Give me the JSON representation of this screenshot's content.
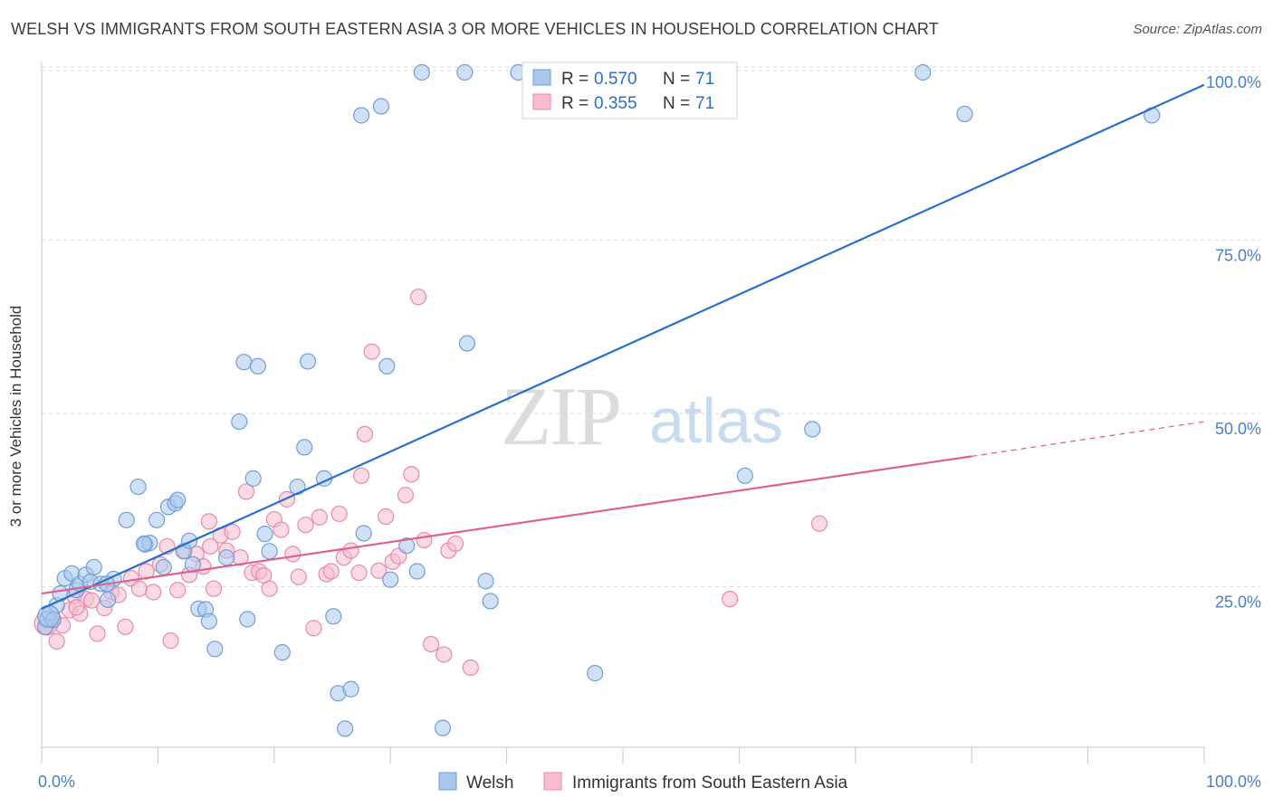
{
  "title": "WELSH VS IMMIGRANTS FROM SOUTH EASTERN ASIA 3 OR MORE VEHICLES IN HOUSEHOLD CORRELATION CHART",
  "source": "Source: ZipAtlas.com",
  "watermark": {
    "zip": "ZIP",
    "atlas": "atlas"
  },
  "colors": {
    "welsh_fill": "#a9c8ee",
    "welsh_stroke": "#6f9fd8",
    "welsh_line": "#2a6fcb",
    "immig_fill": "#f6bdd0",
    "immig_stroke": "#e88aa8",
    "immig_line": "#e0608c",
    "axis_value": "#4a7fcc",
    "grid": "#dddddd"
  },
  "legend": {
    "rows": [
      {
        "r_label": "R =",
        "r_value": "0.570",
        "n_label": "N =",
        "n_value": "71"
      },
      {
        "r_label": "R =",
        "r_value": "0.355",
        "n_label": "N =",
        "n_value": "71"
      }
    ]
  },
  "bottom_legend": [
    {
      "label": "Welsh"
    },
    {
      "label": "Immigrants from South Eastern Asia"
    }
  ],
  "chart_data": {
    "type": "scatter",
    "title": "WELSH VS IMMIGRANTS FROM SOUTH EASTERN ASIA 3 OR MORE VEHICLES IN HOUSEHOLD CORRELATION CHART",
    "xlabel": "",
    "ylabel": "3 or more Vehicles in Household",
    "xlim": [
      0,
      100
    ],
    "ylim": [
      0,
      102
    ],
    "x_tick_labels": [
      "0.0%",
      "100.0%"
    ],
    "y_ticks": [
      25,
      50,
      75,
      100
    ],
    "y_tick_labels": [
      "25.0%",
      "50.0%",
      "75.0%",
      "100.0%"
    ],
    "grid": true,
    "legend_position": "top-center",
    "series": [
      {
        "name": "Welsh",
        "r": 0.57,
        "n": 71,
        "trend": {
          "x": [
            0,
            100
          ],
          "y": [
            22.6,
            98.2
          ]
        },
        "points": [
          [
            0.3,
            20.0
          ],
          [
            0.5,
            21.2
          ],
          [
            0.7,
            22.0
          ],
          [
            1.0,
            21.0
          ],
          [
            1.3,
            23.1
          ],
          [
            1.6,
            24.8
          ],
          [
            2.0,
            27.0
          ],
          [
            2.6,
            27.7
          ],
          [
            3.0,
            25.3
          ],
          [
            3.3,
            26.2
          ],
          [
            3.8,
            27.5
          ],
          [
            4.2,
            26.5
          ],
          [
            4.5,
            28.6
          ],
          [
            5.1,
            26.2
          ],
          [
            5.7,
            23.9
          ],
          [
            6.2,
            26.9
          ],
          [
            7.3,
            35.4
          ],
          [
            8.3,
            40.2
          ],
          [
            8.9,
            31.9
          ],
          [
            9.3,
            32.1
          ],
          [
            9.9,
            35.4
          ],
          [
            10.5,
            28.6
          ],
          [
            10.9,
            37.3
          ],
          [
            11.5,
            37.8
          ],
          [
            11.7,
            38.3
          ],
          [
            12.2,
            30.9
          ],
          [
            12.7,
            32.4
          ],
          [
            13.0,
            29.0
          ],
          [
            13.5,
            22.6
          ],
          [
            14.1,
            22.5
          ],
          [
            14.4,
            20.8
          ],
          [
            14.9,
            16.8
          ],
          [
            15.9,
            30.0
          ],
          [
            17.0,
            49.6
          ],
          [
            17.4,
            58.2
          ],
          [
            17.7,
            21.1
          ],
          [
            18.2,
            41.4
          ],
          [
            18.6,
            57.6
          ],
          [
            19.2,
            33.4
          ],
          [
            19.6,
            30.9
          ],
          [
            20.7,
            16.3
          ],
          [
            22.0,
            40.2
          ],
          [
            22.6,
            45.9
          ],
          [
            22.9,
            58.3
          ],
          [
            24.3,
            41.4
          ],
          [
            25.1,
            21.5
          ],
          [
            25.5,
            10.4
          ],
          [
            26.1,
            5.3
          ],
          [
            26.6,
            11.0
          ],
          [
            27.5,
            93.8
          ],
          [
            27.7,
            33.5
          ],
          [
            29.2,
            95.1
          ],
          [
            29.7,
            57.6
          ],
          [
            30.0,
            26.8
          ],
          [
            31.4,
            31.7
          ],
          [
            32.3,
            28.0
          ],
          [
            32.7,
            100.0
          ],
          [
            34.5,
            5.4
          ],
          [
            36.4,
            100.0
          ],
          [
            36.6,
            60.9
          ],
          [
            38.2,
            26.6
          ],
          [
            38.6,
            23.7
          ],
          [
            41.0,
            100.0
          ],
          [
            47.6,
            13.3
          ],
          [
            60.5,
            41.8
          ],
          [
            66.3,
            48.5
          ],
          [
            75.8,
            100.0
          ],
          [
            79.4,
            94.0
          ],
          [
            95.5,
            93.8
          ],
          [
            5.6,
            26.2
          ],
          [
            8.8,
            32.0
          ]
        ]
      },
      {
        "name": "Immigrants from South Eastern Asia",
        "r": 0.355,
        "n": 71,
        "trend": {
          "x": [
            0,
            80,
            100
          ],
          "y": [
            24.8,
            44.6,
            49.6
          ]
        },
        "points": [
          [
            0.4,
            20.0
          ],
          [
            1.0,
            21.1
          ],
          [
            1.3,
            17.9
          ],
          [
            1.8,
            20.2
          ],
          [
            2.4,
            22.4
          ],
          [
            2.8,
            24.5
          ],
          [
            3.3,
            21.9
          ],
          [
            3.8,
            24.0
          ],
          [
            4.3,
            23.8
          ],
          [
            4.8,
            19.0
          ],
          [
            5.4,
            22.7
          ],
          [
            6.0,
            25.0
          ],
          [
            6.6,
            24.6
          ],
          [
            7.2,
            20.0
          ],
          [
            7.7,
            27.0
          ],
          [
            8.4,
            25.5
          ],
          [
            9.0,
            28.0
          ],
          [
            9.6,
            25.0
          ],
          [
            10.2,
            29.0
          ],
          [
            10.8,
            31.6
          ],
          [
            11.1,
            18.0
          ],
          [
            11.7,
            25.3
          ],
          [
            12.3,
            31.0
          ],
          [
            12.7,
            27.5
          ],
          [
            13.3,
            30.5
          ],
          [
            13.9,
            28.7
          ],
          [
            14.4,
            35.2
          ],
          [
            14.8,
            25.5
          ],
          [
            15.4,
            33.2
          ],
          [
            15.9,
            31.0
          ],
          [
            16.4,
            33.7
          ],
          [
            17.1,
            30.0
          ],
          [
            17.6,
            39.5
          ],
          [
            18.1,
            27.8
          ],
          [
            18.7,
            28.0
          ],
          [
            19.1,
            27.4
          ],
          [
            19.6,
            25.5
          ],
          [
            20.0,
            35.5
          ],
          [
            20.6,
            34.0
          ],
          [
            21.1,
            38.4
          ],
          [
            21.6,
            30.5
          ],
          [
            22.1,
            27.2
          ],
          [
            22.7,
            34.7
          ],
          [
            23.4,
            19.8
          ],
          [
            23.9,
            35.8
          ],
          [
            24.5,
            27.6
          ],
          [
            24.9,
            28.0
          ],
          [
            25.6,
            36.3
          ],
          [
            26.0,
            30.0
          ],
          [
            26.6,
            31.0
          ],
          [
            27.3,
            27.8
          ],
          [
            27.8,
            47.8
          ],
          [
            28.4,
            59.7
          ],
          [
            29.0,
            28.1
          ],
          [
            29.6,
            35.9
          ],
          [
            30.2,
            29.4
          ],
          [
            30.7,
            30.2
          ],
          [
            31.3,
            39.0
          ],
          [
            31.8,
            42.0
          ],
          [
            32.4,
            67.6
          ],
          [
            32.9,
            32.5
          ],
          [
            33.5,
            17.5
          ],
          [
            34.6,
            16.0
          ],
          [
            35.0,
            31.0
          ],
          [
            35.6,
            32.0
          ],
          [
            36.9,
            14.1
          ],
          [
            59.2,
            24.0
          ],
          [
            66.9,
            34.9
          ],
          [
            14.5,
            31.6
          ],
          [
            27.5,
            41.8
          ],
          [
            3.0,
            22.8
          ]
        ]
      }
    ]
  }
}
